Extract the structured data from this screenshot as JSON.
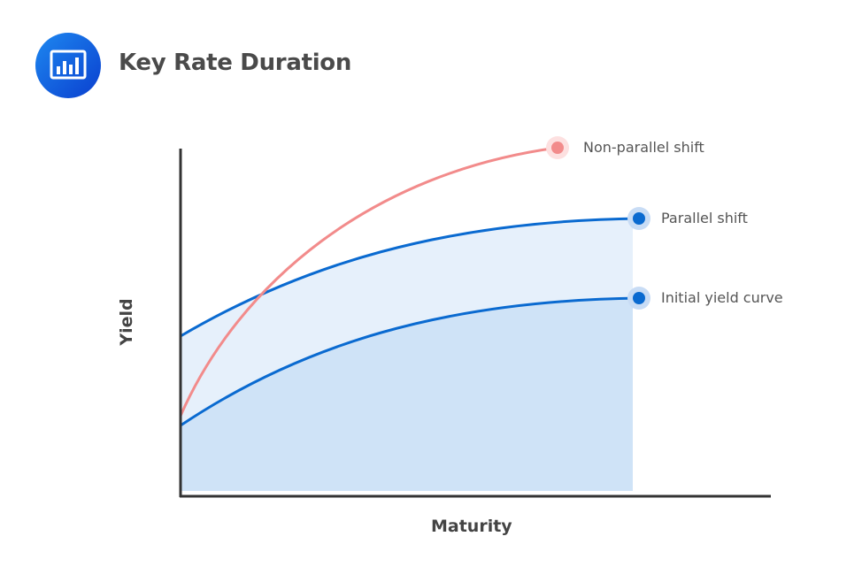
{
  "header": {
    "title": "Key Rate Duration",
    "icon": "bar-chart-icon"
  },
  "chart_data": {
    "type": "line",
    "xlabel": "Maturity",
    "ylabel": "Yield",
    "series": [
      {
        "name": "Non-parallel shift",
        "color": "#f28b8b"
      },
      {
        "name": "Parallel shift",
        "color": "#0a6ad0"
      },
      {
        "name": "Initial yield curve",
        "color": "#0a6ad0"
      }
    ],
    "fill_colors": {
      "between_curves": "#e6f0fb",
      "under_initial": "#cfe3f7"
    }
  }
}
